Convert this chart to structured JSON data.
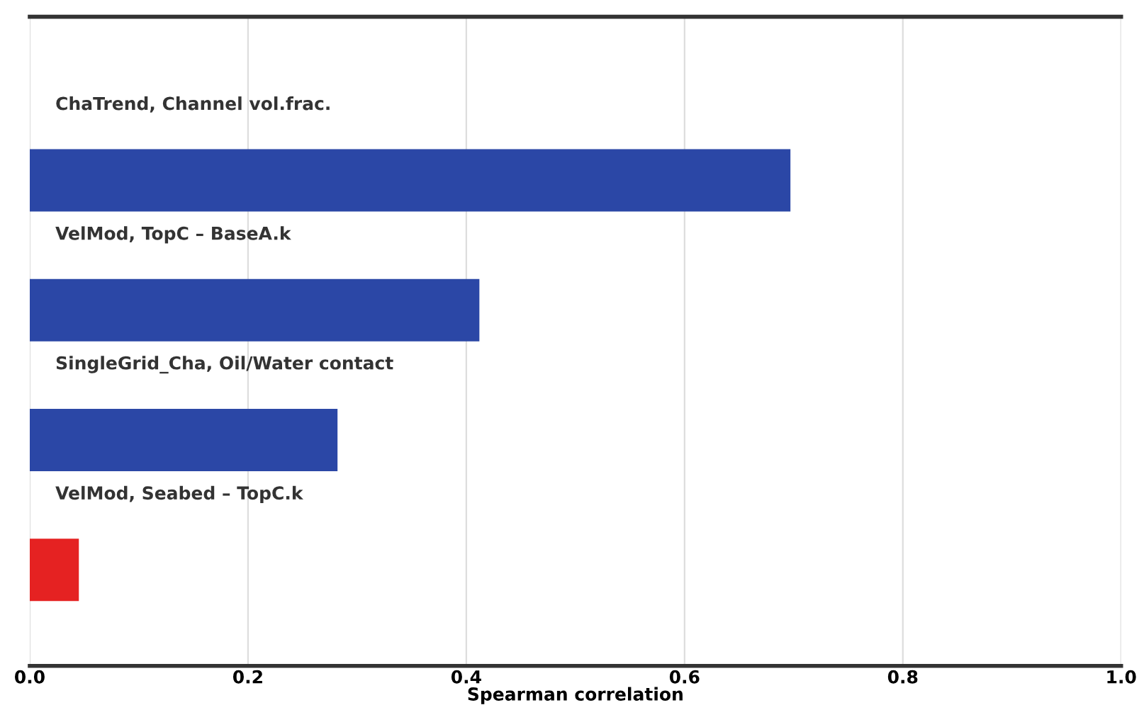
{
  "chart_data": {
    "type": "bar",
    "orientation": "horizontal",
    "xlabel": "Spearman correlation",
    "categories": [
      "ChaTrend, Channel vol.frac.",
      "VelMod, TopC – BaseA.k",
      "SingleGrid_Cha, Oil/Water contact",
      "VelMod, Seabed – TopC.k"
    ],
    "values": [
      0.697,
      0.412,
      0.282,
      0.045
    ],
    "colors": [
      "#2b47a6",
      "#2b47a6",
      "#2b47a6",
      "#e52222"
    ],
    "xlim": [
      0,
      1
    ],
    "xticks": [
      {
        "value": 0,
        "label": "0.0"
      },
      0.2,
      0.4,
      0.6,
      0.8,
      {
        "value": 1,
        "label": "1.0"
      }
    ],
    "grid": "x",
    "legend": false
  }
}
